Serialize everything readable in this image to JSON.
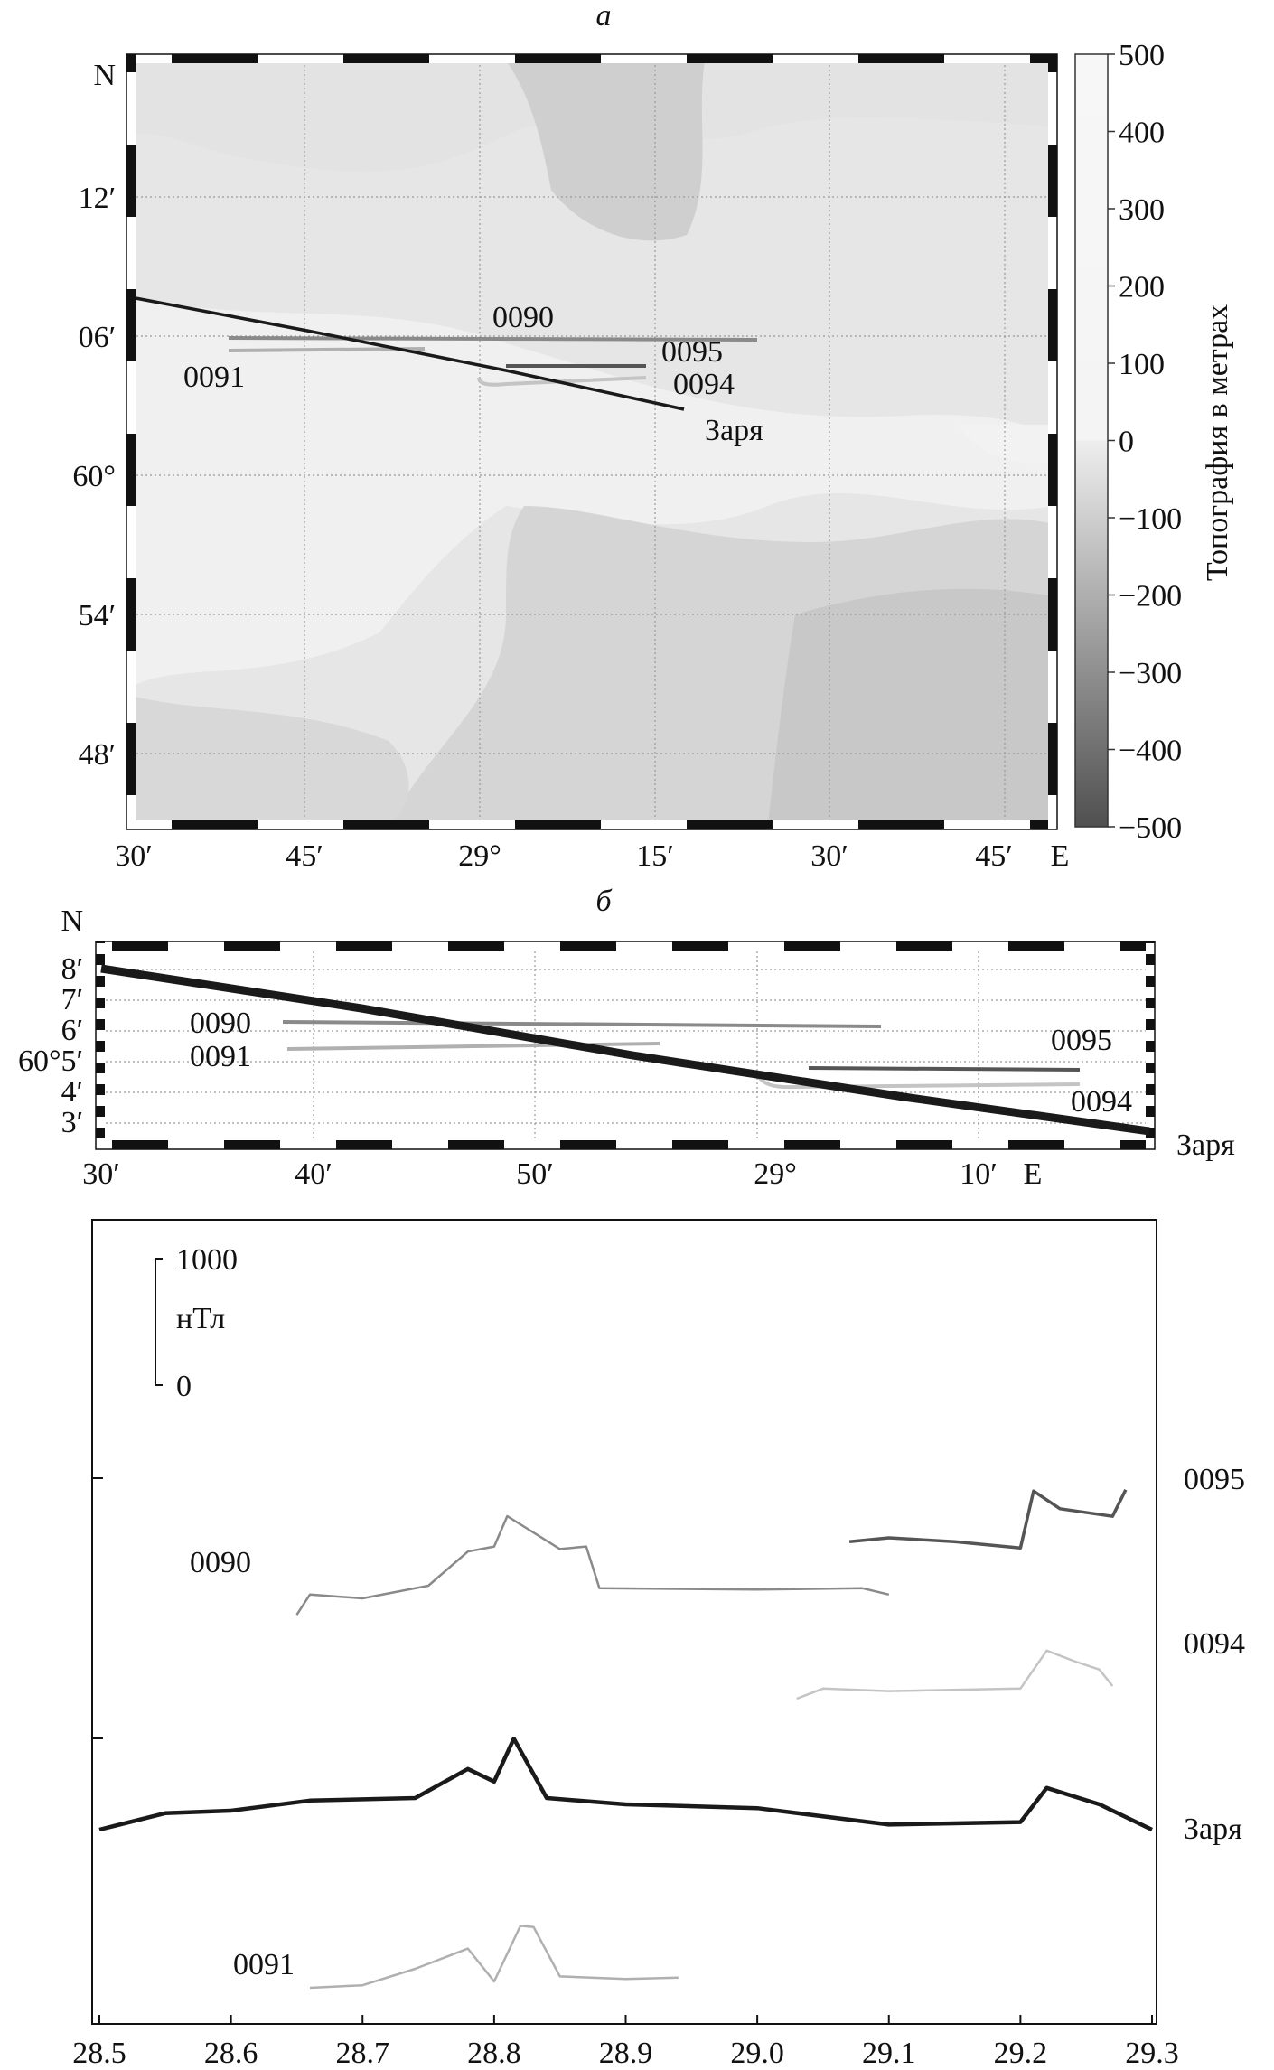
{
  "panel_labels": {
    "a": "а",
    "b": "б"
  },
  "compass": {
    "north": "N",
    "east": "E"
  },
  "map_a": {
    "y_ticks": [
      "N",
      "12′",
      "06′",
      "60°",
      "54′",
      "48′"
    ],
    "x_ticks": [
      "30′",
      "45′",
      "29°",
      "15′",
      "30′",
      "45′",
      "E"
    ],
    "track_labels": {
      "t0090": "0090",
      "t0091": "0091",
      "t0095": "0095",
      "t0094": "0094",
      "zarya": "Заря"
    },
    "colorbar": {
      "title": "Топография в метрах",
      "ticks": [
        "500",
        "400",
        "300",
        "200",
        "100",
        "0",
        "−100",
        "−200",
        "−300",
        "−400",
        "−500"
      ],
      "range": [
        -500,
        500
      ]
    }
  },
  "map_b": {
    "y_ticks": [
      "N",
      "8′",
      "7′",
      "6′",
      "60°5′",
      "4′",
      "3′"
    ],
    "x_ticks": [
      "30′",
      "40′",
      "50′",
      "29°",
      "10′",
      "E"
    ],
    "track_labels": {
      "t0090": "0090",
      "t0091": "0091",
      "t0095": "0095",
      "t0094": "0094",
      "zarya": "Заря"
    }
  },
  "profiles": {
    "scale_bar": {
      "top": "1000",
      "unit": "нТл",
      "bottom": "0"
    },
    "x_ticks": [
      "28.5",
      "28.6",
      "28.7",
      "28.8",
      "28.9",
      "29.0",
      "29.1",
      "29.2",
      "29.3"
    ],
    "xlim": [
      28.5,
      29.3
    ],
    "series_labels": {
      "t0090": "0090",
      "t0091": "0091",
      "t0095": "0095",
      "t0094": "0094",
      "zarya": "Заря"
    }
  },
  "colors": {
    "zarya": "#1a1a1a",
    "t0090": "#8a8a8a",
    "t0091": "#b0b0b0",
    "t0095": "#555555",
    "t0094": "#c4c4c4"
  },
  "chart_data": [
    {
      "type": "line",
      "title": "",
      "xlabel": "",
      "ylabel": "",
      "ylim_note": "",
      "xlim": [
        28.5,
        29.3
      ],
      "series": [
        {
          "name": "0090",
          "x": [
            28.65,
            28.66,
            28.7,
            28.75,
            28.78,
            28.8,
            28.81,
            28.85,
            28.87,
            28.88,
            29.0,
            29.08,
            29.1
          ],
          "y": [
            20,
            180,
            150,
            250,
            520,
            560,
            800,
            540,
            560,
            230,
            220,
            230,
            180
          ]
        },
        {
          "name": "0095",
          "x": [
            29.07,
            29.1,
            29.15,
            29.2,
            29.21,
            29.23,
            29.27,
            29.28
          ],
          "y": [
            170,
            200,
            170,
            120,
            570,
            430,
            370,
            580
          ]
        },
        {
          "name": "0094",
          "x": [
            29.03,
            29.05,
            29.1,
            29.2,
            29.22,
            29.24,
            29.26,
            29.27
          ],
          "y": [
            0,
            80,
            60,
            80,
            380,
            300,
            230,
            100
          ]
        },
        {
          "name": "Заря",
          "x": [
            28.5,
            28.55,
            28.6,
            28.66,
            28.74,
            28.78,
            28.8,
            28.815,
            28.84,
            28.9,
            29.0,
            29.1,
            29.2,
            29.22,
            29.26,
            29.3
          ],
          "y": [
            0,
            130,
            150,
            230,
            250,
            480,
            380,
            720,
            250,
            200,
            170,
            40,
            60,
            330,
            200,
            0
          ]
        },
        {
          "name": "0091",
          "x": [
            28.66,
            28.7,
            28.74,
            28.78,
            28.8,
            28.82,
            28.83,
            28.85,
            28.9,
            28.94
          ],
          "y": [
            0,
            20,
            150,
            310,
            50,
            490,
            480,
            90,
            70,
            80
          ]
        }
      ]
    }
  ]
}
